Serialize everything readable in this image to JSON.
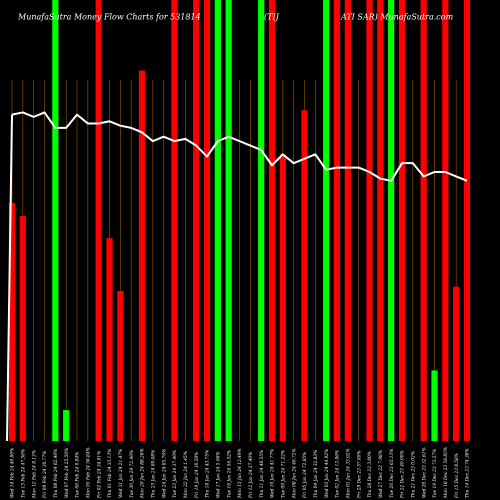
{
  "chart_data": {
    "type": "bar",
    "title_parts": [
      "MunafaSutra Money Flow Charts for 531814",
      "(TIJ",
      "ATI SAR) MunafaSutra.com"
    ],
    "ylim": [
      0,
      100
    ],
    "grid": false,
    "legend": "none",
    "colors": {
      "background": "#000000",
      "up": "#00ff00",
      "down": "#ff0000",
      "line": "#ffffff",
      "guide": "#9a5a00"
    },
    "categories": [
      "Wed 14 Feb 24 40.00%",
      "Tue 13 Feb 24 47.56%",
      "Mon 12 Feb 24 8.13%",
      "Fri 09 Feb 24 30.77%",
      "Thu 08 Feb 24 62.46%",
      "Wed 07 Feb 24 25.56%",
      "Tue 06 Feb 24 0.84%",
      "Mon 05 Feb 24 56.84%",
      "Fri 02 Feb 24 34.91%",
      "Thu 01 Feb 24 33.13%",
      "Wed 31 Jan 24 21.47%",
      "Tue 30 Jan 24 72.46%",
      "Mon 29 Jan 24 88.26%",
      "Thu 25 Jan 24 80.08%",
      "Wed 24 Jan 24 85.76%",
      "Tue 23 Jan 24 37.40%",
      "Mon 22 Jan 24 1.45%",
      "Fri 19 Jan 24 30.58%",
      "Thu 18 Jan 24 43.75%",
      "Wed 17 Jan 24 5.96%",
      "Tue 16 Jan 24 54.52%",
      "Mon 15 Jan 24 12.49%",
      "Fri 12 Jan 24 27.40%",
      "Thu 11 Jan 24 48.55%",
      "Wed 10 Jan 24 41.77%",
      "Tue 09 Jan 24 71.22%",
      "Mon 08 Jan 24 46.72%",
      "Fri 05 Jan 24 72.85%",
      "Thu 04 Jan 24 32.83%",
      "Wed 03 Jan 24 44.92%",
      "Tue 02 Jan 24 13.86%",
      "Mon 01 Jan 24 33.02%",
      "Fri 29 Dec 23 57.69%",
      "Thu 28 Dec 23 3.80%",
      "Wed 27 Dec 23 7.98%",
      "Tue 26 Dec 23 63.13%",
      "Fri 22 Dec 23 49.00%",
      "Thu 21 Dec 23 0.02%",
      "Wed 20 Dec 23 32.61%",
      "Tue 19 Dec 23 73.57%",
      "Mon 18 Dec 23 58.85%",
      "Fri 15 Dec 23 8.58%",
      "Thu 14 Dec 23 74.38%"
    ],
    "series": [
      {
        "kind": "bar",
        "colors": [
          "red",
          "red",
          "red",
          "green",
          "green",
          "green",
          "green",
          "green",
          "red",
          "red",
          "red",
          "green",
          "red",
          "green",
          "green",
          "red",
          "green",
          "red",
          "red",
          "green",
          "green",
          "red",
          "green",
          "green",
          "red",
          "red",
          "green",
          "red",
          "green",
          "green",
          "red",
          "red",
          "green",
          "red",
          "red",
          "green",
          "red",
          "green",
          "red",
          "green",
          "red",
          "red",
          "red"
        ],
        "values": [
          100,
          100,
          100,
          100,
          100,
          100,
          100,
          100,
          100,
          100,
          100,
          100,
          100,
          100,
          100,
          100,
          100,
          100,
          100,
          100,
          100,
          100,
          100,
          100,
          100,
          100,
          100,
          100,
          100,
          100,
          100,
          100,
          100,
          100,
          100,
          100,
          100,
          100,
          100,
          100,
          100,
          100,
          100
        ],
        "shaded_from_top": [
          54,
          51,
          0,
          0,
          100,
          7,
          0,
          0,
          100,
          46,
          34,
          0,
          84,
          0,
          0,
          100,
          0,
          100,
          100,
          100,
          100,
          0,
          0,
          100,
          100,
          65,
          0,
          75,
          0,
          100,
          100,
          100,
          0,
          100,
          100,
          100,
          100,
          0,
          100,
          16,
          100,
          35,
          100
        ]
      },
      {
        "kind": "line",
        "values": [
          74,
          74.5,
          73.5,
          74.5,
          71,
          71,
          74,
          72,
          72,
          72.5,
          71.5,
          71,
          70,
          68,
          69,
          68,
          68.5,
          67,
          64.5,
          68,
          69,
          68,
          67,
          66,
          62.5,
          65,
          63,
          64,
          65,
          61.5,
          62,
          62,
          62,
          61,
          59.5,
          59,
          63,
          63,
          60,
          61,
          61,
          60,
          59
        ]
      }
    ]
  }
}
